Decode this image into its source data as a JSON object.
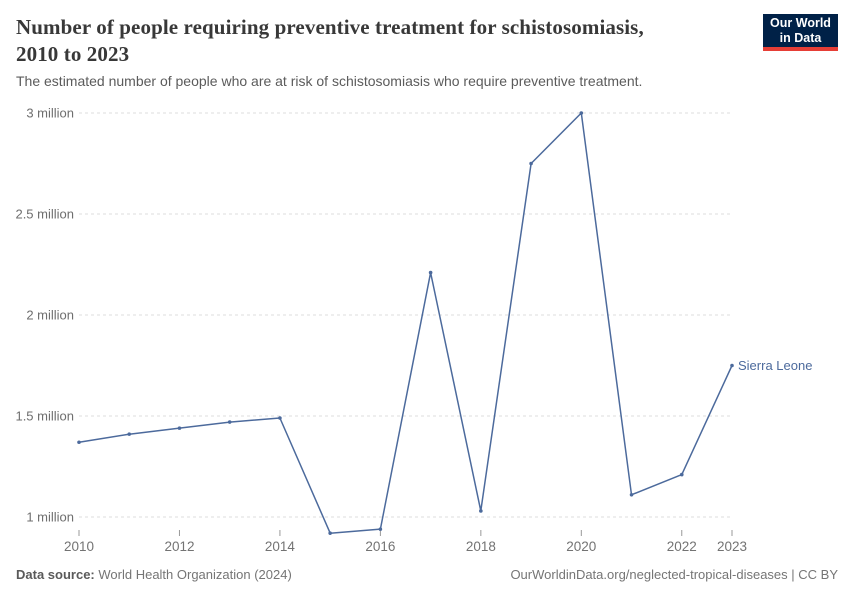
{
  "header": {
    "title_line1": "Number of people requiring preventive treatment for schistosomiasis,",
    "title_line2": "2010 to 2023",
    "subtitle": "The estimated number of people who are at risk of schistosomiasis who require preventive treatment.",
    "logo": {
      "line1": "Our World",
      "line2": "in Data"
    }
  },
  "chart_data": {
    "type": "line",
    "title": "Number of people requiring preventive treatment for schistosomiasis, 2010 to 2023",
    "subtitle": "The estimated number of people who are at risk of schistosomiasis who require preventive treatment.",
    "x": [
      2010,
      2011,
      2012,
      2013,
      2014,
      2015,
      2016,
      2017,
      2018,
      2019,
      2020,
      2021,
      2022,
      2023
    ],
    "series": [
      {
        "name": "Sierra Leone",
        "color": "#4C6A9C",
        "values": [
          1370000,
          1410000,
          1440000,
          1470000,
          1490000,
          920000,
          940000,
          2210000,
          1030000,
          2750000,
          3000000,
          1110000,
          1210000,
          1750000
        ]
      }
    ],
    "x_ticks": [
      2010,
      2012,
      2014,
      2016,
      2018,
      2020,
      2022,
      2023
    ],
    "y_ticks": [
      {
        "value": 1000000,
        "label": "1 million"
      },
      {
        "value": 1500000,
        "label": "1.5 million"
      },
      {
        "value": 2000000,
        "label": "2 million"
      },
      {
        "value": 2500000,
        "label": "2.5 million"
      },
      {
        "value": 3000000,
        "label": "3 million"
      }
    ],
    "xlim": [
      2010,
      2023
    ],
    "ylim": [
      900000,
      3010000
    ],
    "xlabel": "",
    "ylabel": "",
    "grid": "horizontal-dashed",
    "legend_position": "line-end-label"
  },
  "footer": {
    "datasource_label": "Data source:",
    "datasource_value": "World Health Organization (2024)",
    "right_text": "OurWorldinData.org/neglected-tropical-diseases | CC BY"
  },
  "colors": {
    "accent": "#4C6A9C",
    "logo_bg": "#002147",
    "logo_red": "#E63E36",
    "gridline": "#dcdcdc",
    "axis_text": "#6e6e6e",
    "tick": "#999999"
  }
}
